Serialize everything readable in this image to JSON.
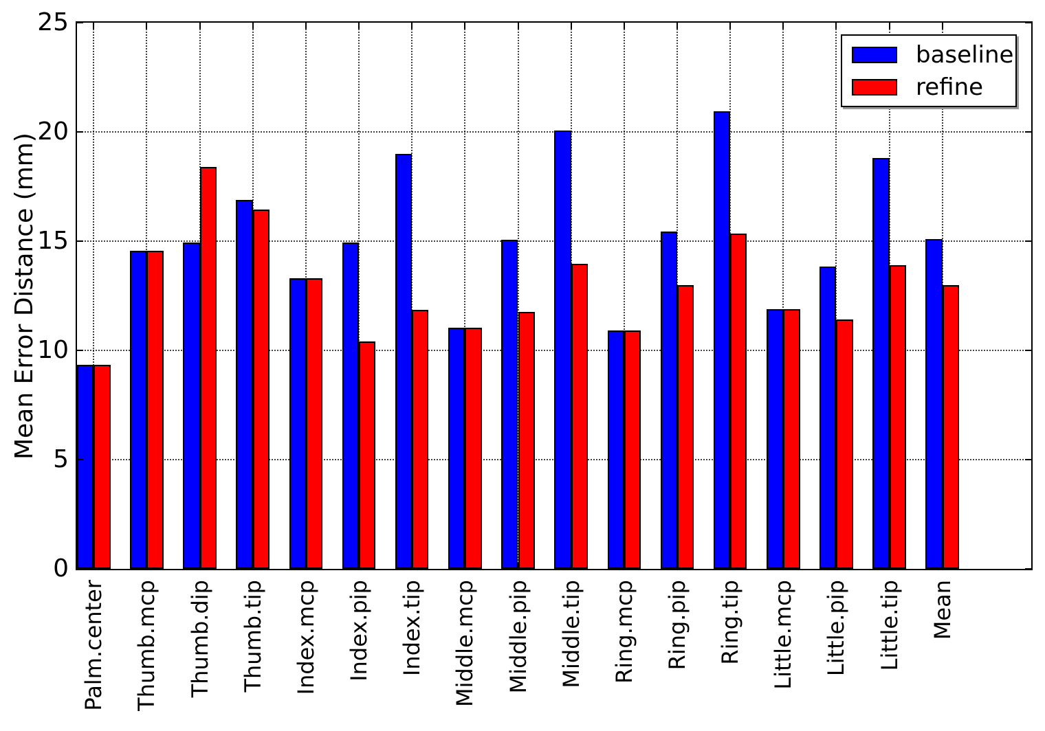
{
  "figure": {
    "ylabel": "Mean Error Distance (mm)"
  },
  "legend": {
    "entries": [
      {
        "label": "baseline",
        "color": "#0000ff"
      },
      {
        "label": "refine",
        "color": "#ff0000"
      }
    ],
    "position": "upper right"
  },
  "chart_data": {
    "type": "bar",
    "title": "",
    "xlabel": "",
    "ylabel": "Mean Error Distance (mm)",
    "ylim": [
      0,
      25
    ],
    "yticks": [
      0,
      5,
      10,
      15,
      20,
      25
    ],
    "grid": true,
    "grid_style": "dotted",
    "legend_position": "upper right",
    "categories": [
      "Palm.center",
      "Thumb.mcp",
      "Thumb.dip",
      "Thumb.tip",
      "Index.mcp",
      "Index.pip",
      "Index.tip",
      "Middle.mcp",
      "Middle.pip",
      "Middle.tip",
      "Ring.mcp",
      "Ring.pip",
      "Ring.tip",
      "Little.mcp",
      "Little.pip",
      "Little.tip",
      "Mean"
    ],
    "series": [
      {
        "name": "baseline",
        "color": "#0000ff",
        "values": [
          9.35,
          14.55,
          14.95,
          16.9,
          13.3,
          14.95,
          19.0,
          11.05,
          15.05,
          20.05,
          10.9,
          15.45,
          20.95,
          11.9,
          13.85,
          18.8,
          15.1
        ]
      },
      {
        "name": "refine",
        "color": "#ff0000",
        "values": [
          9.35,
          14.55,
          18.4,
          16.45,
          13.3,
          10.4,
          11.85,
          11.05,
          11.75,
          13.95,
          10.9,
          13.0,
          15.35,
          11.9,
          11.4,
          13.9,
          13.0
        ]
      }
    ]
  }
}
